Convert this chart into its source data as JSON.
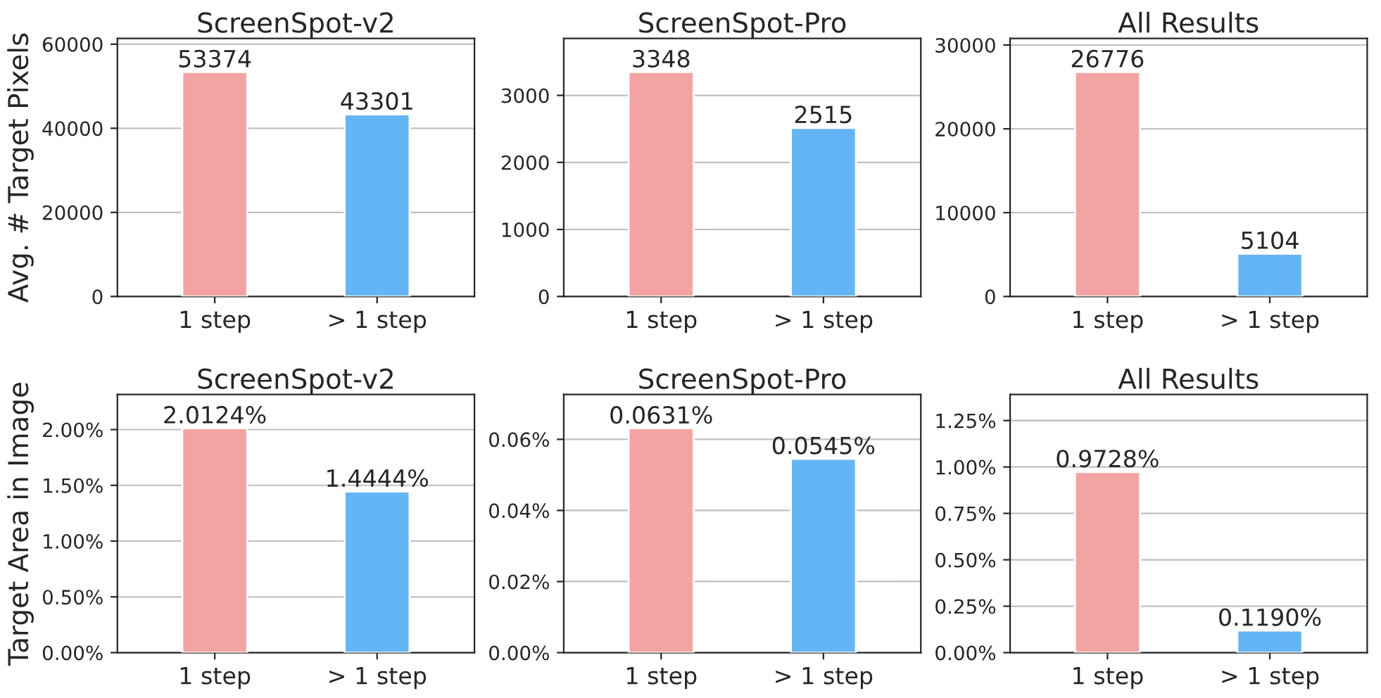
{
  "chart_data": [
    {
      "type": "bar",
      "title": "ScreenSpot-v2",
      "ylabel": "Avg. # Target Pixels",
      "categories": [
        "1 step",
        "> 1 step"
      ],
      "values": [
        53374,
        43301
      ],
      "colors": [
        "#f4a3a3",
        "#64b5f6"
      ],
      "ylim": [
        0,
        61380
      ],
      "yticks": [
        0,
        20000,
        40000,
        60000
      ],
      "grid": "y",
      "data_labels": true
    },
    {
      "type": "bar",
      "title": "ScreenSpot-Pro",
      "categories": [
        "1 step",
        "> 1 step"
      ],
      "values": [
        3348,
        2515
      ],
      "colors": [
        "#f4a3a3",
        "#64b5f6"
      ],
      "ylim": [
        0,
        3850
      ],
      "yticks": [
        0,
        1000,
        2000,
        3000
      ],
      "grid": "y",
      "data_labels": true
    },
    {
      "type": "bar",
      "title": "All Results",
      "categories": [
        "1 step",
        "> 1 step"
      ],
      "values": [
        26776,
        5104
      ],
      "colors": [
        "#f4a3a3",
        "#64b5f6"
      ],
      "ylim": [
        0,
        30792
      ],
      "yticks": [
        0,
        10000,
        20000,
        30000
      ],
      "grid": "y",
      "data_labels": true
    },
    {
      "type": "bar",
      "title": "ScreenSpot-v2",
      "ylabel": "Target Area in Image",
      "categories": [
        "1 step",
        "> 1 step"
      ],
      "values": [
        2.0124,
        1.4444
      ],
      "value_labels": [
        "2.0124%",
        "1.4444%"
      ],
      "colors": [
        "#f4a3a3",
        "#64b5f6"
      ],
      "ylim": [
        0,
        2.314
      ],
      "yticks": [
        {
          "value": 0,
          "label": "0.00%"
        },
        {
          "value": 0.5,
          "label": "0.50%"
        },
        {
          "value": 1.0,
          "label": "1.00%"
        },
        {
          "value": 1.5,
          "label": "1.50%"
        },
        {
          "value": 2.0,
          "label": "2.00%"
        }
      ],
      "grid": "y"
    },
    {
      "type": "bar",
      "title": "ScreenSpot-Pro",
      "categories": [
        "1 step",
        "> 1 step"
      ],
      "values": [
        0.0631,
        0.0545
      ],
      "value_labels": [
        "0.0631%",
        "0.0545%"
      ],
      "colors": [
        "#f4a3a3",
        "#64b5f6"
      ],
      "ylim": [
        0,
        0.0726
      ],
      "yticks": [
        {
          "value": 0,
          "label": "0.00%"
        },
        {
          "value": 0.02,
          "label": "0.02%"
        },
        {
          "value": 0.04,
          "label": "0.04%"
        },
        {
          "value": 0.06,
          "label": "0.06%"
        }
      ],
      "grid": "y"
    },
    {
      "type": "bar",
      "title": "All Results",
      "categories": [
        "1 step",
        "> 1 step"
      ],
      "values": [
        0.9728,
        0.119
      ],
      "value_labels": [
        "0.9728%",
        "0.1190%"
      ],
      "colors": [
        "#f4a3a3",
        "#64b5f6"
      ],
      "ylim": [
        0,
        1.39
      ],
      "yticks": [
        {
          "value": 0,
          "label": "0.00%"
        },
        {
          "value": 0.25,
          "label": "0.25%"
        },
        {
          "value": 0.5,
          "label": "0.50%"
        },
        {
          "value": 0.75,
          "label": "0.75%"
        },
        {
          "value": 1.0,
          "label": "1.00%"
        },
        {
          "value": 1.25,
          "label": "1.25%"
        }
      ],
      "grid": "y"
    }
  ]
}
